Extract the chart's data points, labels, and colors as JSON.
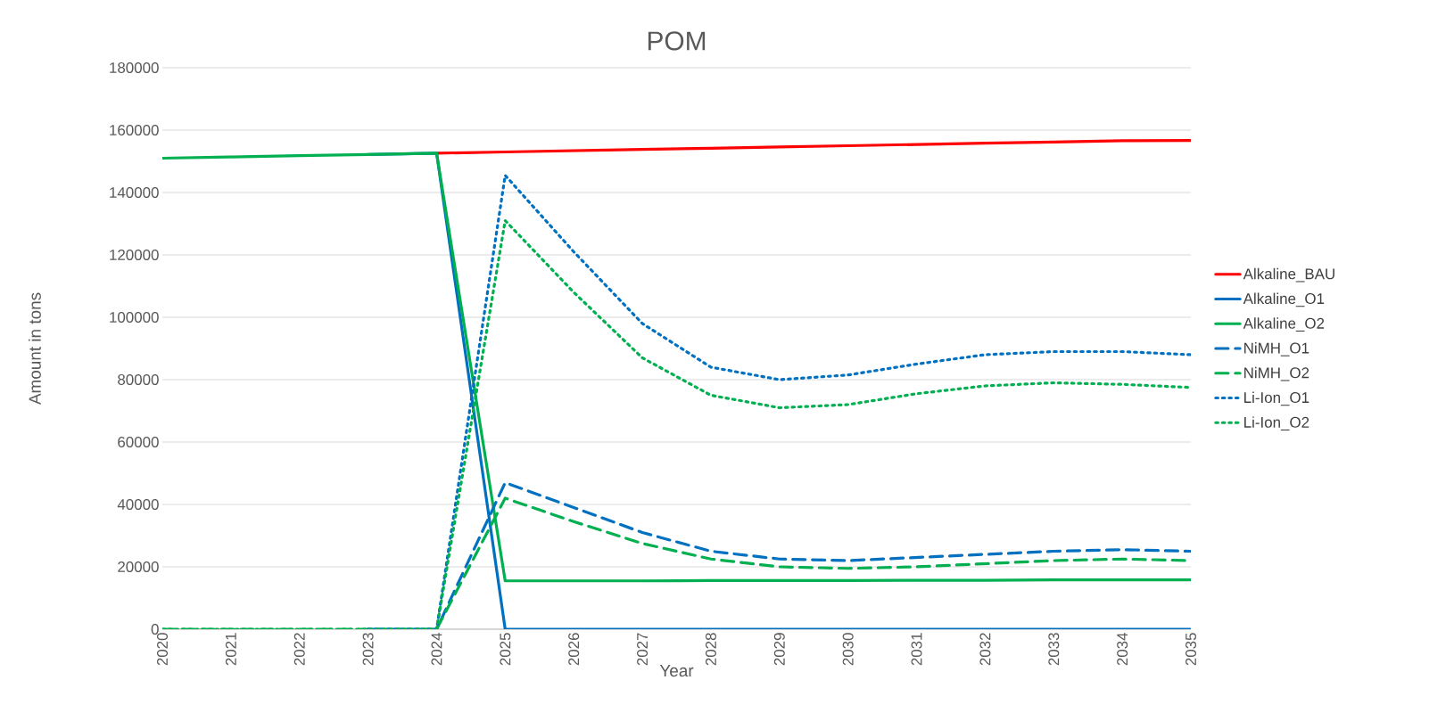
{
  "chart_data": {
    "type": "line",
    "title": "POM",
    "xlabel": "Year",
    "ylabel": "Amount in tons",
    "x": [
      2020,
      2021,
      2022,
      2023,
      2024,
      2025,
      2026,
      2027,
      2028,
      2029,
      2030,
      2031,
      2032,
      2033,
      2034,
      2035
    ],
    "xlim": [
      2020,
      2035
    ],
    "xticks": [
      2020,
      2021,
      2022,
      2023,
      2024,
      2025,
      2026,
      2027,
      2028,
      2029,
      2030,
      2031,
      2032,
      2033,
      2034,
      2035
    ],
    "ylim": [
      0,
      180000
    ],
    "yticks": [
      0,
      20000,
      40000,
      60000,
      80000,
      100000,
      120000,
      140000,
      160000,
      180000
    ],
    "grid": "y",
    "legend": "right",
    "marker": "none",
    "series": [
      {
        "name": "Alkaline_BAU",
        "color": "#ff0000",
        "line_style": "solid",
        "values": [
          null,
          null,
          null,
          null,
          152600,
          153000,
          153400,
          153800,
          154200,
          154600,
          155000,
          155400,
          155800,
          156200,
          156600,
          156700
        ]
      },
      {
        "name": "Alkaline_O1",
        "color": "#0070c0",
        "line_style": "solid",
        "values": [
          null,
          null,
          null,
          152200,
          152600,
          0,
          0,
          0,
          0,
          0,
          0,
          0,
          0,
          0,
          0,
          0
        ]
      },
      {
        "name": "Alkaline_O2",
        "color": "#00b050",
        "line_style": "solid",
        "values": [
          151000,
          151400,
          151800,
          152200,
          152600,
          15500,
          15500,
          15500,
          15600,
          15600,
          15600,
          15700,
          15700,
          15800,
          15800,
          15800
        ]
      },
      {
        "name": "NiMH_O1",
        "color": "#0070c0",
        "line_style": "dashed",
        "values": [
          null,
          null,
          null,
          0,
          0,
          47000,
          39000,
          31000,
          25000,
          22500,
          22000,
          23000,
          24000,
          25000,
          25500,
          25000
        ]
      },
      {
        "name": "NiMH_O2",
        "color": "#00b050",
        "line_style": "dashed",
        "values": [
          0,
          0,
          0,
          0,
          0,
          42000,
          34500,
          27500,
          22500,
          20000,
          19500,
          20000,
          21000,
          22000,
          22500,
          22000
        ]
      },
      {
        "name": "Li-Ion_O1",
        "color": "#0070c0",
        "line_style": "dotted",
        "values": [
          null,
          null,
          null,
          0,
          0,
          145500,
          121000,
          98000,
          84000,
          80000,
          81500,
          85000,
          88000,
          89000,
          89000,
          88000
        ]
      },
      {
        "name": "Li-Ion_O2",
        "color": "#00b050",
        "line_style": "dotted",
        "values": [
          0,
          0,
          0,
          0,
          0,
          131000,
          108000,
          87000,
          75000,
          71000,
          72000,
          75500,
          78000,
          79000,
          78500,
          77500
        ]
      }
    ]
  }
}
